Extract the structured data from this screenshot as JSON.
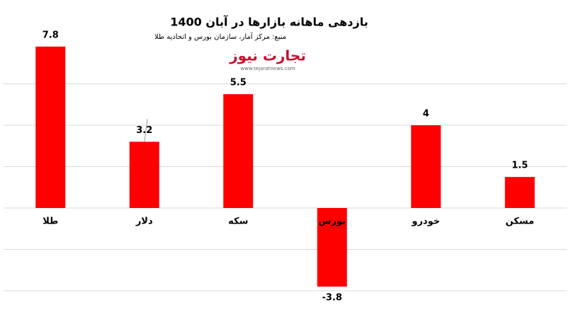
{
  "chart_data": {
    "type": "bar",
    "title": "بازدهی ماهانه بازارها در آبان  1400",
    "source": "منبع: مرکز آمار، سازمان بورس و اتحادیه طلا",
    "categories": [
      "طلا",
      "دلار",
      "سکه",
      "بورس",
      "خودرو",
      "مسکن"
    ],
    "values": [
      7.8,
      3.2,
      5.5,
      -3.8,
      4,
      1.5
    ],
    "color": "#ff0000",
    "ylim": [
      -4,
      8
    ],
    "yticks": [
      -4,
      -2,
      0,
      2,
      4,
      6
    ],
    "grid": true
  },
  "logo": {
    "name": "تجارت نیوز",
    "url": "www.tejaratnews.com"
  }
}
